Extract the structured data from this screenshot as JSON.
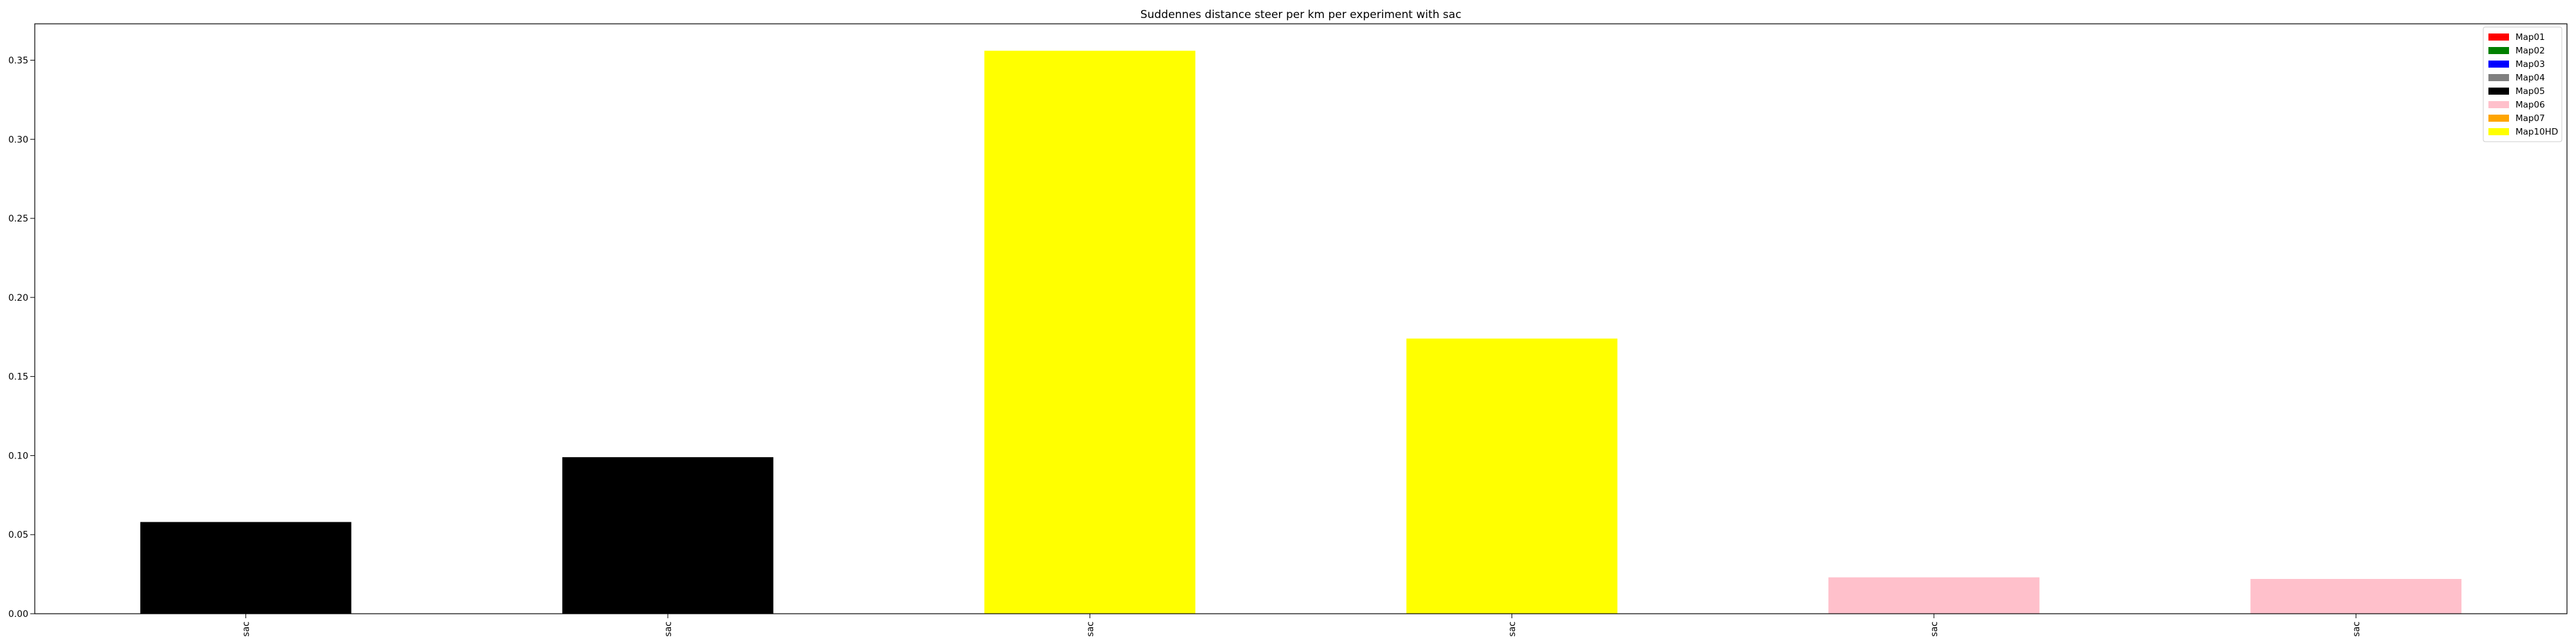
{
  "chart_data": {
    "type": "bar",
    "title": "Suddennes distance steer per km per experiment with sac",
    "xlabel": "",
    "ylabel": "",
    "categories": [
      "sac",
      "sac",
      "sac",
      "sac",
      "sac",
      "sac"
    ],
    "values": [
      0.058,
      0.099,
      0.356,
      0.174,
      0.023,
      0.022
    ],
    "bar_series": [
      "Map05",
      "Map05",
      "Map10HD",
      "Map10HD",
      "Map06",
      "Map06"
    ],
    "ylim": [
      0,
      0.373
    ],
    "yticks": [
      0.0,
      0.05,
      0.1,
      0.15,
      0.2,
      0.25,
      0.3,
      0.35
    ],
    "ytick_labels": [
      "0.00",
      "0.05",
      "0.10",
      "0.15",
      "0.20",
      "0.25",
      "0.30",
      "0.35"
    ],
    "grid": false,
    "legend_position": "top-right",
    "legend": [
      {
        "name": "Map01",
        "color": "#ff0000"
      },
      {
        "name": "Map02",
        "color": "#008000"
      },
      {
        "name": "Map03",
        "color": "#0000ff"
      },
      {
        "name": "Map04",
        "color": "#808080"
      },
      {
        "name": "Map05",
        "color": "#000000"
      },
      {
        "name": "Map06",
        "color": "#ffc0cb"
      },
      {
        "name": "Map07",
        "color": "#ffa500"
      },
      {
        "name": "Map10HD",
        "color": "#ffff00"
      }
    ]
  }
}
